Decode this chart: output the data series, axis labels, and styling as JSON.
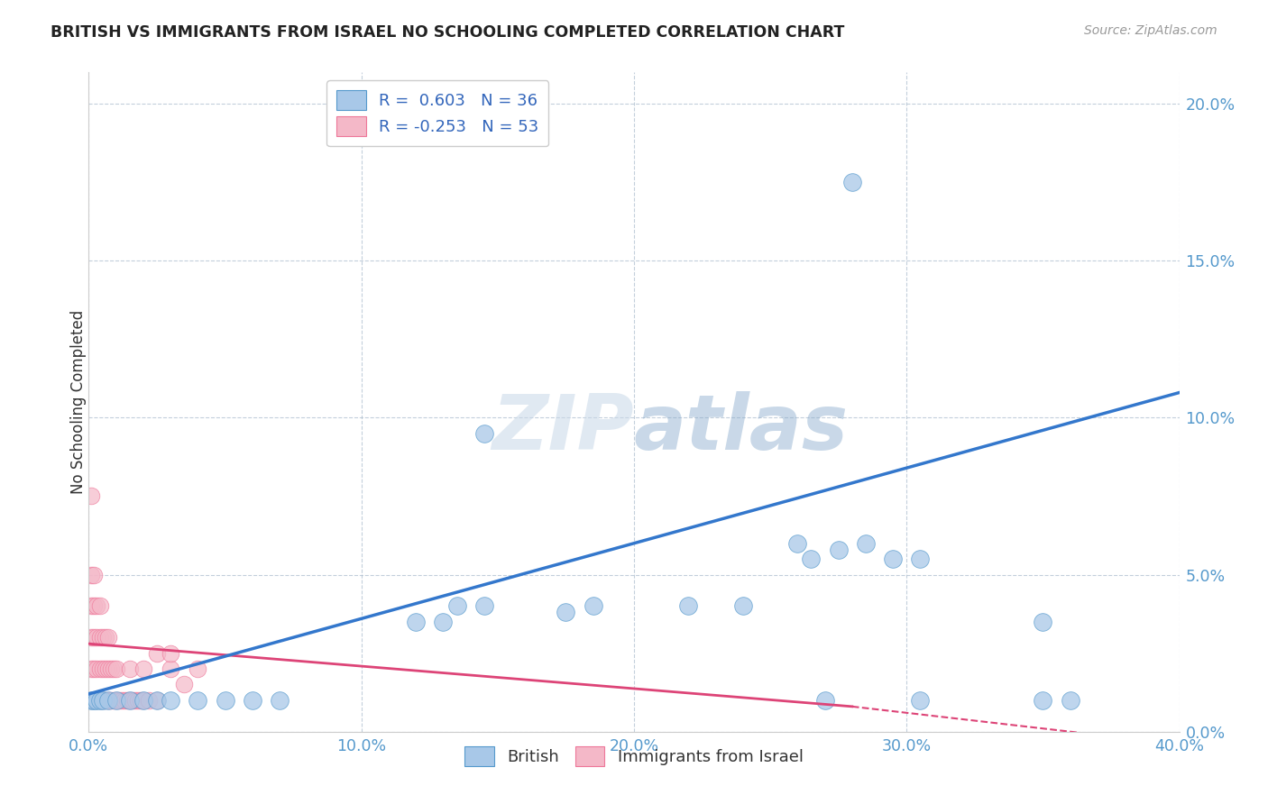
{
  "title": "BRITISH VS IMMIGRANTS FROM ISRAEL NO SCHOOLING COMPLETED CORRELATION CHART",
  "source": "Source: ZipAtlas.com",
  "ylabel": "No Schooling Completed",
  "legend_r1": "R =  0.603",
  "legend_n1": "N = 36",
  "legend_r2": "R = -0.253",
  "legend_n2": "N = 53",
  "blue_color": "#a8c8e8",
  "pink_color": "#f4b8c8",
  "blue_edge_color": "#5599cc",
  "pink_edge_color": "#ee7799",
  "blue_line_color": "#3377cc",
  "pink_line_color": "#dd4477",
  "background_color": "#ffffff",
  "grid_color": "#aabbcc",
  "tick_color": "#5599cc",
  "label_color": "#333333",
  "xlim": [
    0.0,
    0.4
  ],
  "ylim": [
    0.0,
    0.21
  ],
  "yticks": [
    0.0,
    0.05,
    0.1,
    0.15,
    0.2
  ],
  "xticks": [
    0.0,
    0.1,
    0.2,
    0.3,
    0.4
  ],
  "blue_points": [
    [
      0.001,
      0.01
    ],
    [
      0.002,
      0.01
    ],
    [
      0.003,
      0.01
    ],
    [
      0.004,
      0.01
    ],
    [
      0.005,
      0.01
    ],
    [
      0.007,
      0.01
    ],
    [
      0.01,
      0.01
    ],
    [
      0.015,
      0.01
    ],
    [
      0.02,
      0.01
    ],
    [
      0.025,
      0.01
    ],
    [
      0.03,
      0.01
    ],
    [
      0.04,
      0.01
    ],
    [
      0.05,
      0.01
    ],
    [
      0.06,
      0.01
    ],
    [
      0.07,
      0.01
    ],
    [
      0.12,
      0.035
    ],
    [
      0.13,
      0.035
    ],
    [
      0.135,
      0.04
    ],
    [
      0.145,
      0.04
    ],
    [
      0.175,
      0.038
    ],
    [
      0.185,
      0.04
    ],
    [
      0.22,
      0.04
    ],
    [
      0.24,
      0.04
    ],
    [
      0.26,
      0.06
    ],
    [
      0.275,
      0.058
    ],
    [
      0.285,
      0.06
    ],
    [
      0.295,
      0.055
    ],
    [
      0.305,
      0.055
    ],
    [
      0.145,
      0.095
    ],
    [
      0.265,
      0.055
    ],
    [
      0.35,
      0.01
    ],
    [
      0.36,
      0.01
    ],
    [
      0.305,
      0.01
    ],
    [
      0.27,
      0.01
    ],
    [
      0.28,
      0.175
    ],
    [
      0.35,
      0.035
    ]
  ],
  "pink_points": [
    [
      0.001,
      0.01
    ],
    [
      0.002,
      0.01
    ],
    [
      0.003,
      0.01
    ],
    [
      0.004,
      0.01
    ],
    [
      0.005,
      0.01
    ],
    [
      0.006,
      0.01
    ],
    [
      0.007,
      0.01
    ],
    [
      0.008,
      0.01
    ],
    [
      0.009,
      0.01
    ],
    [
      0.01,
      0.01
    ],
    [
      0.011,
      0.01
    ],
    [
      0.012,
      0.01
    ],
    [
      0.013,
      0.01
    ],
    [
      0.014,
      0.01
    ],
    [
      0.015,
      0.01
    ],
    [
      0.016,
      0.01
    ],
    [
      0.017,
      0.01
    ],
    [
      0.018,
      0.01
    ],
    [
      0.019,
      0.01
    ],
    [
      0.02,
      0.01
    ],
    [
      0.022,
      0.01
    ],
    [
      0.025,
      0.01
    ],
    [
      0.001,
      0.02
    ],
    [
      0.002,
      0.02
    ],
    [
      0.003,
      0.02
    ],
    [
      0.004,
      0.02
    ],
    [
      0.005,
      0.02
    ],
    [
      0.006,
      0.02
    ],
    [
      0.007,
      0.02
    ],
    [
      0.008,
      0.02
    ],
    [
      0.009,
      0.02
    ],
    [
      0.01,
      0.02
    ],
    [
      0.015,
      0.02
    ],
    [
      0.02,
      0.02
    ],
    [
      0.001,
      0.03
    ],
    [
      0.002,
      0.03
    ],
    [
      0.003,
      0.03
    ],
    [
      0.004,
      0.03
    ],
    [
      0.005,
      0.03
    ],
    [
      0.006,
      0.03
    ],
    [
      0.007,
      0.03
    ],
    [
      0.001,
      0.04
    ],
    [
      0.002,
      0.04
    ],
    [
      0.003,
      0.04
    ],
    [
      0.004,
      0.04
    ],
    [
      0.001,
      0.05
    ],
    [
      0.002,
      0.05
    ],
    [
      0.001,
      0.075
    ],
    [
      0.03,
      0.02
    ],
    [
      0.035,
      0.015
    ],
    [
      0.025,
      0.025
    ],
    [
      0.03,
      0.025
    ],
    [
      0.04,
      0.02
    ]
  ],
  "blue_line": [
    [
      0.0,
      0.012
    ],
    [
      0.4,
      0.108
    ]
  ],
  "pink_line": [
    [
      0.0,
      0.028
    ],
    [
      0.28,
      0.008
    ]
  ]
}
